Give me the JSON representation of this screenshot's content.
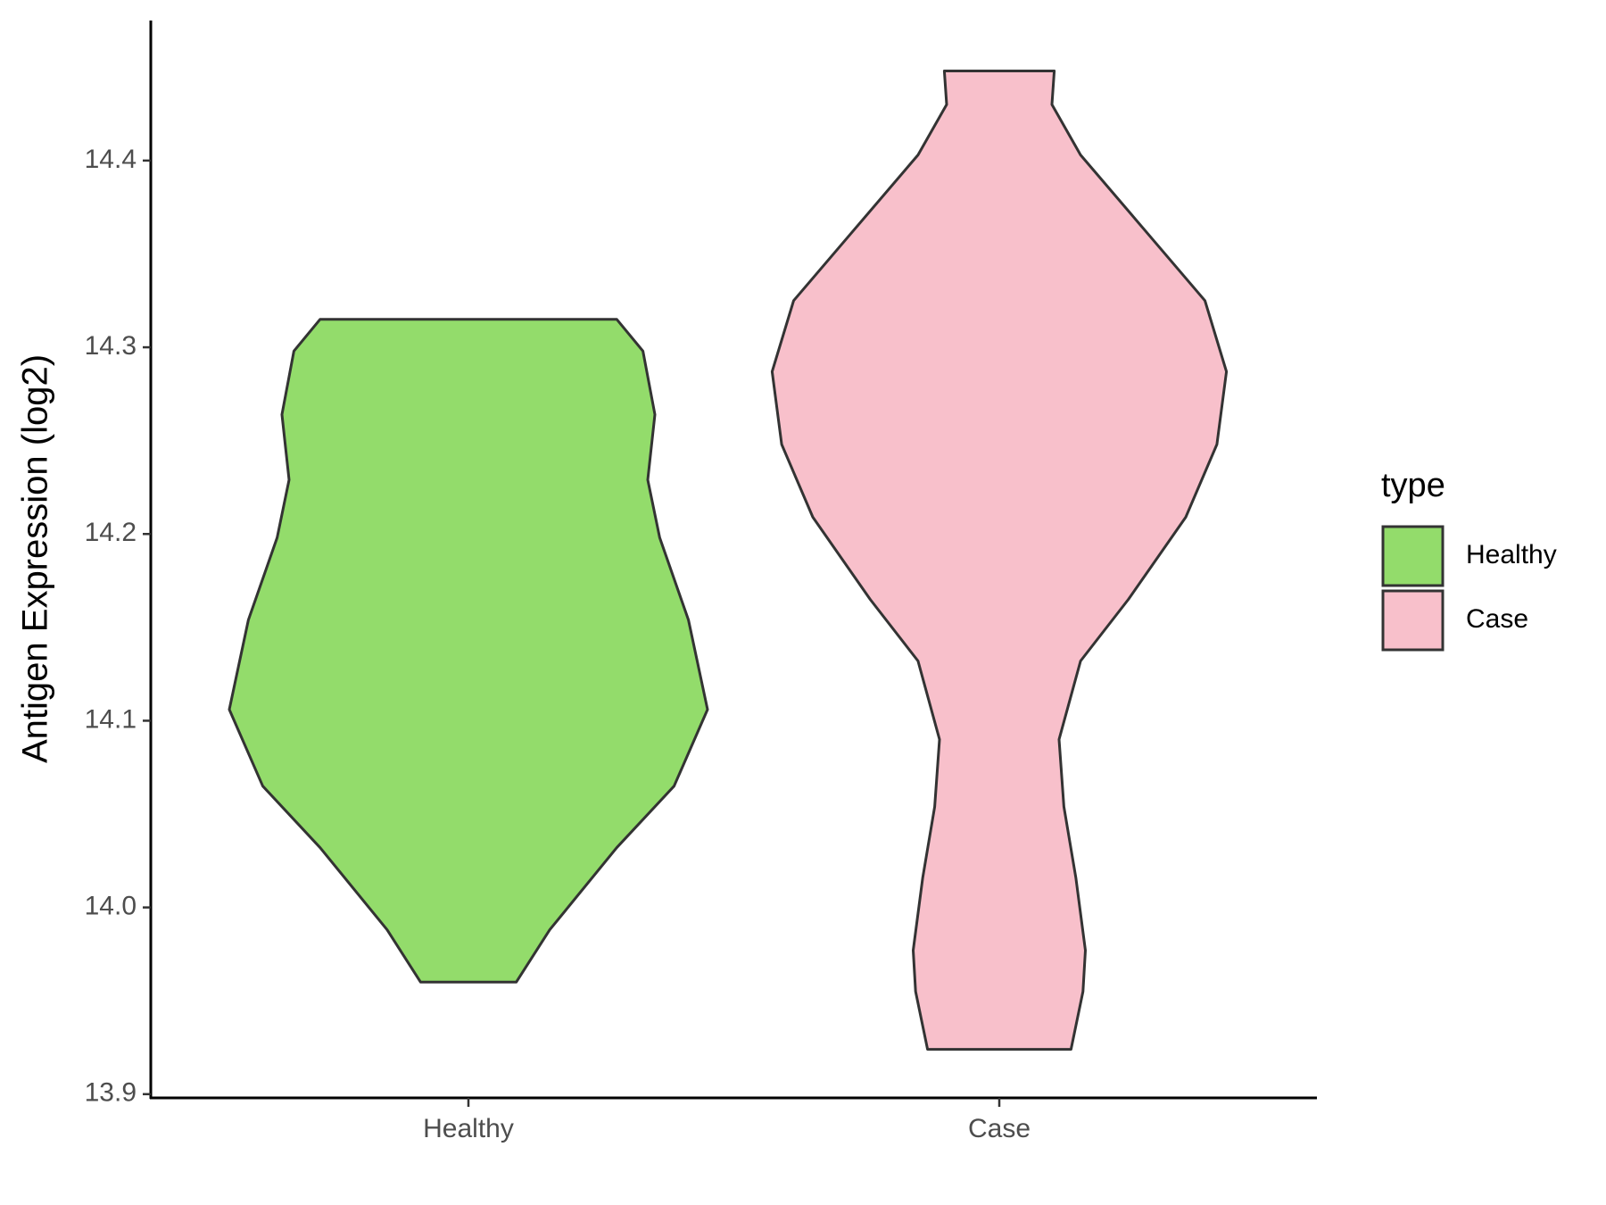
{
  "chart_data": {
    "type": "violin",
    "y_label": "Antigen Expression (log2)",
    "legend_title": "type",
    "legend": "right",
    "categories": [
      "Healthy",
      "Case"
    ],
    "series": [
      {
        "name": "Healthy",
        "color": "#93dc6b",
        "values": [
          13.96,
          13.988,
          14.032,
          14.065,
          14.106,
          14.154,
          14.198,
          14.229,
          14.264,
          14.298,
          14.315
        ],
        "widths": [
          0.2,
          0.34,
          0.62,
          0.86,
          1.0,
          0.92,
          0.8,
          0.75,
          0.78,
          0.73,
          0.62
        ]
      },
      {
        "name": "Case",
        "color": "#f8c0cb",
        "values": [
          13.924,
          13.955,
          13.977,
          14.016,
          14.054,
          14.09,
          14.132,
          14.165,
          14.209,
          14.248,
          14.287,
          14.325,
          14.364,
          14.403,
          14.43,
          14.448
        ],
        "widths": [
          0.3,
          0.35,
          0.36,
          0.32,
          0.27,
          0.25,
          0.34,
          0.54,
          0.78,
          0.91,
          0.95,
          0.86,
          0.6,
          0.34,
          0.22,
          0.23
        ]
      }
    ],
    "ylim": [
      13.898,
      14.475
    ],
    "yticks": [
      13.9,
      {
        "value": 14.0,
        "label": "14.0"
      },
      14.1,
      14.2,
      14.3,
      14.4
    ]
  }
}
